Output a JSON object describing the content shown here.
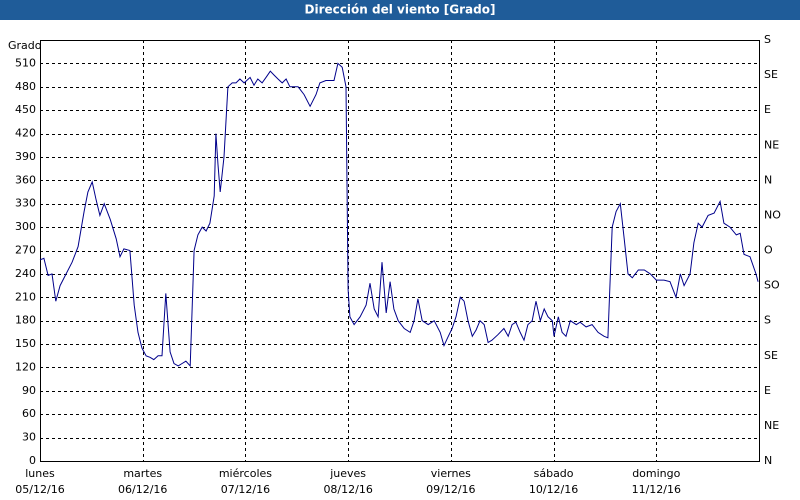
{
  "chart_data": {
    "type": "line",
    "title": "Dirección del viento [Grado]",
    "y_label": "Grado",
    "xlim": [
      0,
      168
    ],
    "xticks": [
      {
        "value": 0,
        "label": "lunes",
        "date": "05/12/16"
      },
      {
        "value": 24,
        "label": "martes",
        "date": "06/12/16"
      },
      {
        "value": 48,
        "label": "miércoles",
        "date": "07/12/16"
      },
      {
        "value": 72,
        "label": "jueves",
        "date": "08/12/16"
      },
      {
        "value": 96,
        "label": "viernes",
        "date": "09/12/16"
      },
      {
        "value": 120,
        "label": "sábado",
        "date": "10/12/16"
      },
      {
        "value": 144,
        "label": "domingo",
        "date": "11/12/16"
      }
    ],
    "ylim": [
      0,
      540
    ],
    "yticks": [
      0,
      30,
      60,
      90,
      120,
      150,
      180,
      210,
      240,
      270,
      300,
      330,
      360,
      390,
      420,
      450,
      480,
      510
    ],
    "y2lim": [
      0,
      540
    ],
    "y2ticks": [
      {
        "value": 0,
        "label": "N"
      },
      {
        "value": 45,
        "label": "NE"
      },
      {
        "value": 90,
        "label": "E"
      },
      {
        "value": 135,
        "label": "SE"
      },
      {
        "value": 180,
        "label": "S"
      },
      {
        "value": 225,
        "label": "SO"
      },
      {
        "value": 270,
        "label": "O"
      },
      {
        "value": 315,
        "label": "NO"
      },
      {
        "value": 360,
        "label": "N"
      },
      {
        "value": 405,
        "label": "NE"
      },
      {
        "value": 450,
        "label": "E"
      },
      {
        "value": 495,
        "label": "SE"
      },
      {
        "value": 540,
        "label": "S"
      }
    ],
    "grid": true,
    "series": [
      {
        "color": "#00008b",
        "x": [
          0,
          0.9,
          1.9,
          2.8,
          3.7,
          4.7,
          6.1,
          7.5,
          8.9,
          10.3,
          11.2,
          12.2,
          13.1,
          14.0,
          15.0,
          16.4,
          17.8,
          18.7,
          19.6,
          21.0,
          22.0,
          22.9,
          23.8,
          24.8,
          25.7,
          26.6,
          27.6,
          28.5,
          29.4,
          30.4,
          31.3,
          32.3,
          33.2,
          34.1,
          35.1,
          36.0,
          36.9,
          37.9,
          38.8,
          39.7,
          40.7,
          41.1,
          41.6,
          42.1,
          43.0,
          43.9,
          44.9,
          45.8,
          46.7,
          47.7,
          49.1,
          50.0,
          50.9,
          51.9,
          52.8,
          53.8,
          54.7,
          55.6,
          56.6,
          57.5,
          58.4,
          60.3,
          61.7,
          63.1,
          64.5,
          65.4,
          66.8,
          68.7,
          69.6,
          70.6,
          71.5,
          72.0,
          72.4,
          73.4,
          74.8,
          76.2,
          77.1,
          78.1,
          79.0,
          79.9,
          80.9,
          81.8,
          82.7,
          83.7,
          85.1,
          86.5,
          87.4,
          88.3,
          89.3,
          90.7,
          92.1,
          93.5,
          94.4,
          95.4,
          96.3,
          97.2,
          98.2,
          99.1,
          100.0,
          101.0,
          101.9,
          102.8,
          103.8,
          104.7,
          105.6,
          107.0,
          108.4,
          109.4,
          110.3,
          111.2,
          112.2,
          113.1,
          114.0,
          115.0,
          115.9,
          116.9,
          117.8,
          118.7,
          119.7,
          120.1,
          121.1,
          122.0,
          122.9,
          123.9,
          125.3,
          126.2,
          127.6,
          129.0,
          130.4,
          131.8,
          132.7,
          133.7,
          134.6,
          135.6,
          136.5,
          137.4,
          138.4,
          139.8,
          141.2,
          142.6,
          144.0,
          145.8,
          147.2,
          148.6,
          149.6,
          150.5,
          151.9,
          152.8,
          153.8,
          154.7,
          156.1,
          157.5,
          158.9,
          159.8,
          161.2,
          162.7,
          163.6,
          164.5,
          165.9,
          167.3,
          167.8
        ],
        "values": [
          258,
          260,
          238,
          240,
          205,
          225,
          240,
          255,
          275,
          320,
          345,
          358,
          335,
          315,
          330,
          310,
          285,
          262,
          272,
          270,
          200,
          165,
          145,
          135,
          133,
          130,
          135,
          135,
          215,
          140,
          125,
          122,
          125,
          128,
          122,
          270,
          290,
          300,
          295,
          305,
          340,
          420,
          380,
          345,
          390,
          480,
          485,
          485,
          490,
          485,
          492,
          482,
          490,
          485,
          492,
          500,
          495,
          490,
          485,
          490,
          480,
          480,
          470,
          455,
          470,
          485,
          488,
          488,
          510,
          505,
          480,
          220,
          185,
          175,
          185,
          200,
          228,
          195,
          185,
          255,
          190,
          230,
          195,
          180,
          170,
          165,
          180,
          208,
          180,
          175,
          180,
          165,
          148,
          160,
          170,
          185,
          210,
          205,
          180,
          160,
          168,
          180,
          175,
          152,
          155,
          162,
          170,
          160,
          175,
          178,
          165,
          155,
          175,
          180,
          205,
          180,
          195,
          185,
          180,
          160,
          185,
          165,
          160,
          180,
          175,
          178,
          172,
          175,
          165,
          160,
          158,
          300,
          320,
          330,
          285,
          240,
          235,
          245,
          245,
          240,
          232,
          232,
          230,
          210,
          240,
          225,
          240,
          280,
          305,
          300,
          315,
          318,
          333,
          305,
          300,
          290,
          292,
          265,
          262,
          240,
          230
        ]
      }
    ]
  }
}
